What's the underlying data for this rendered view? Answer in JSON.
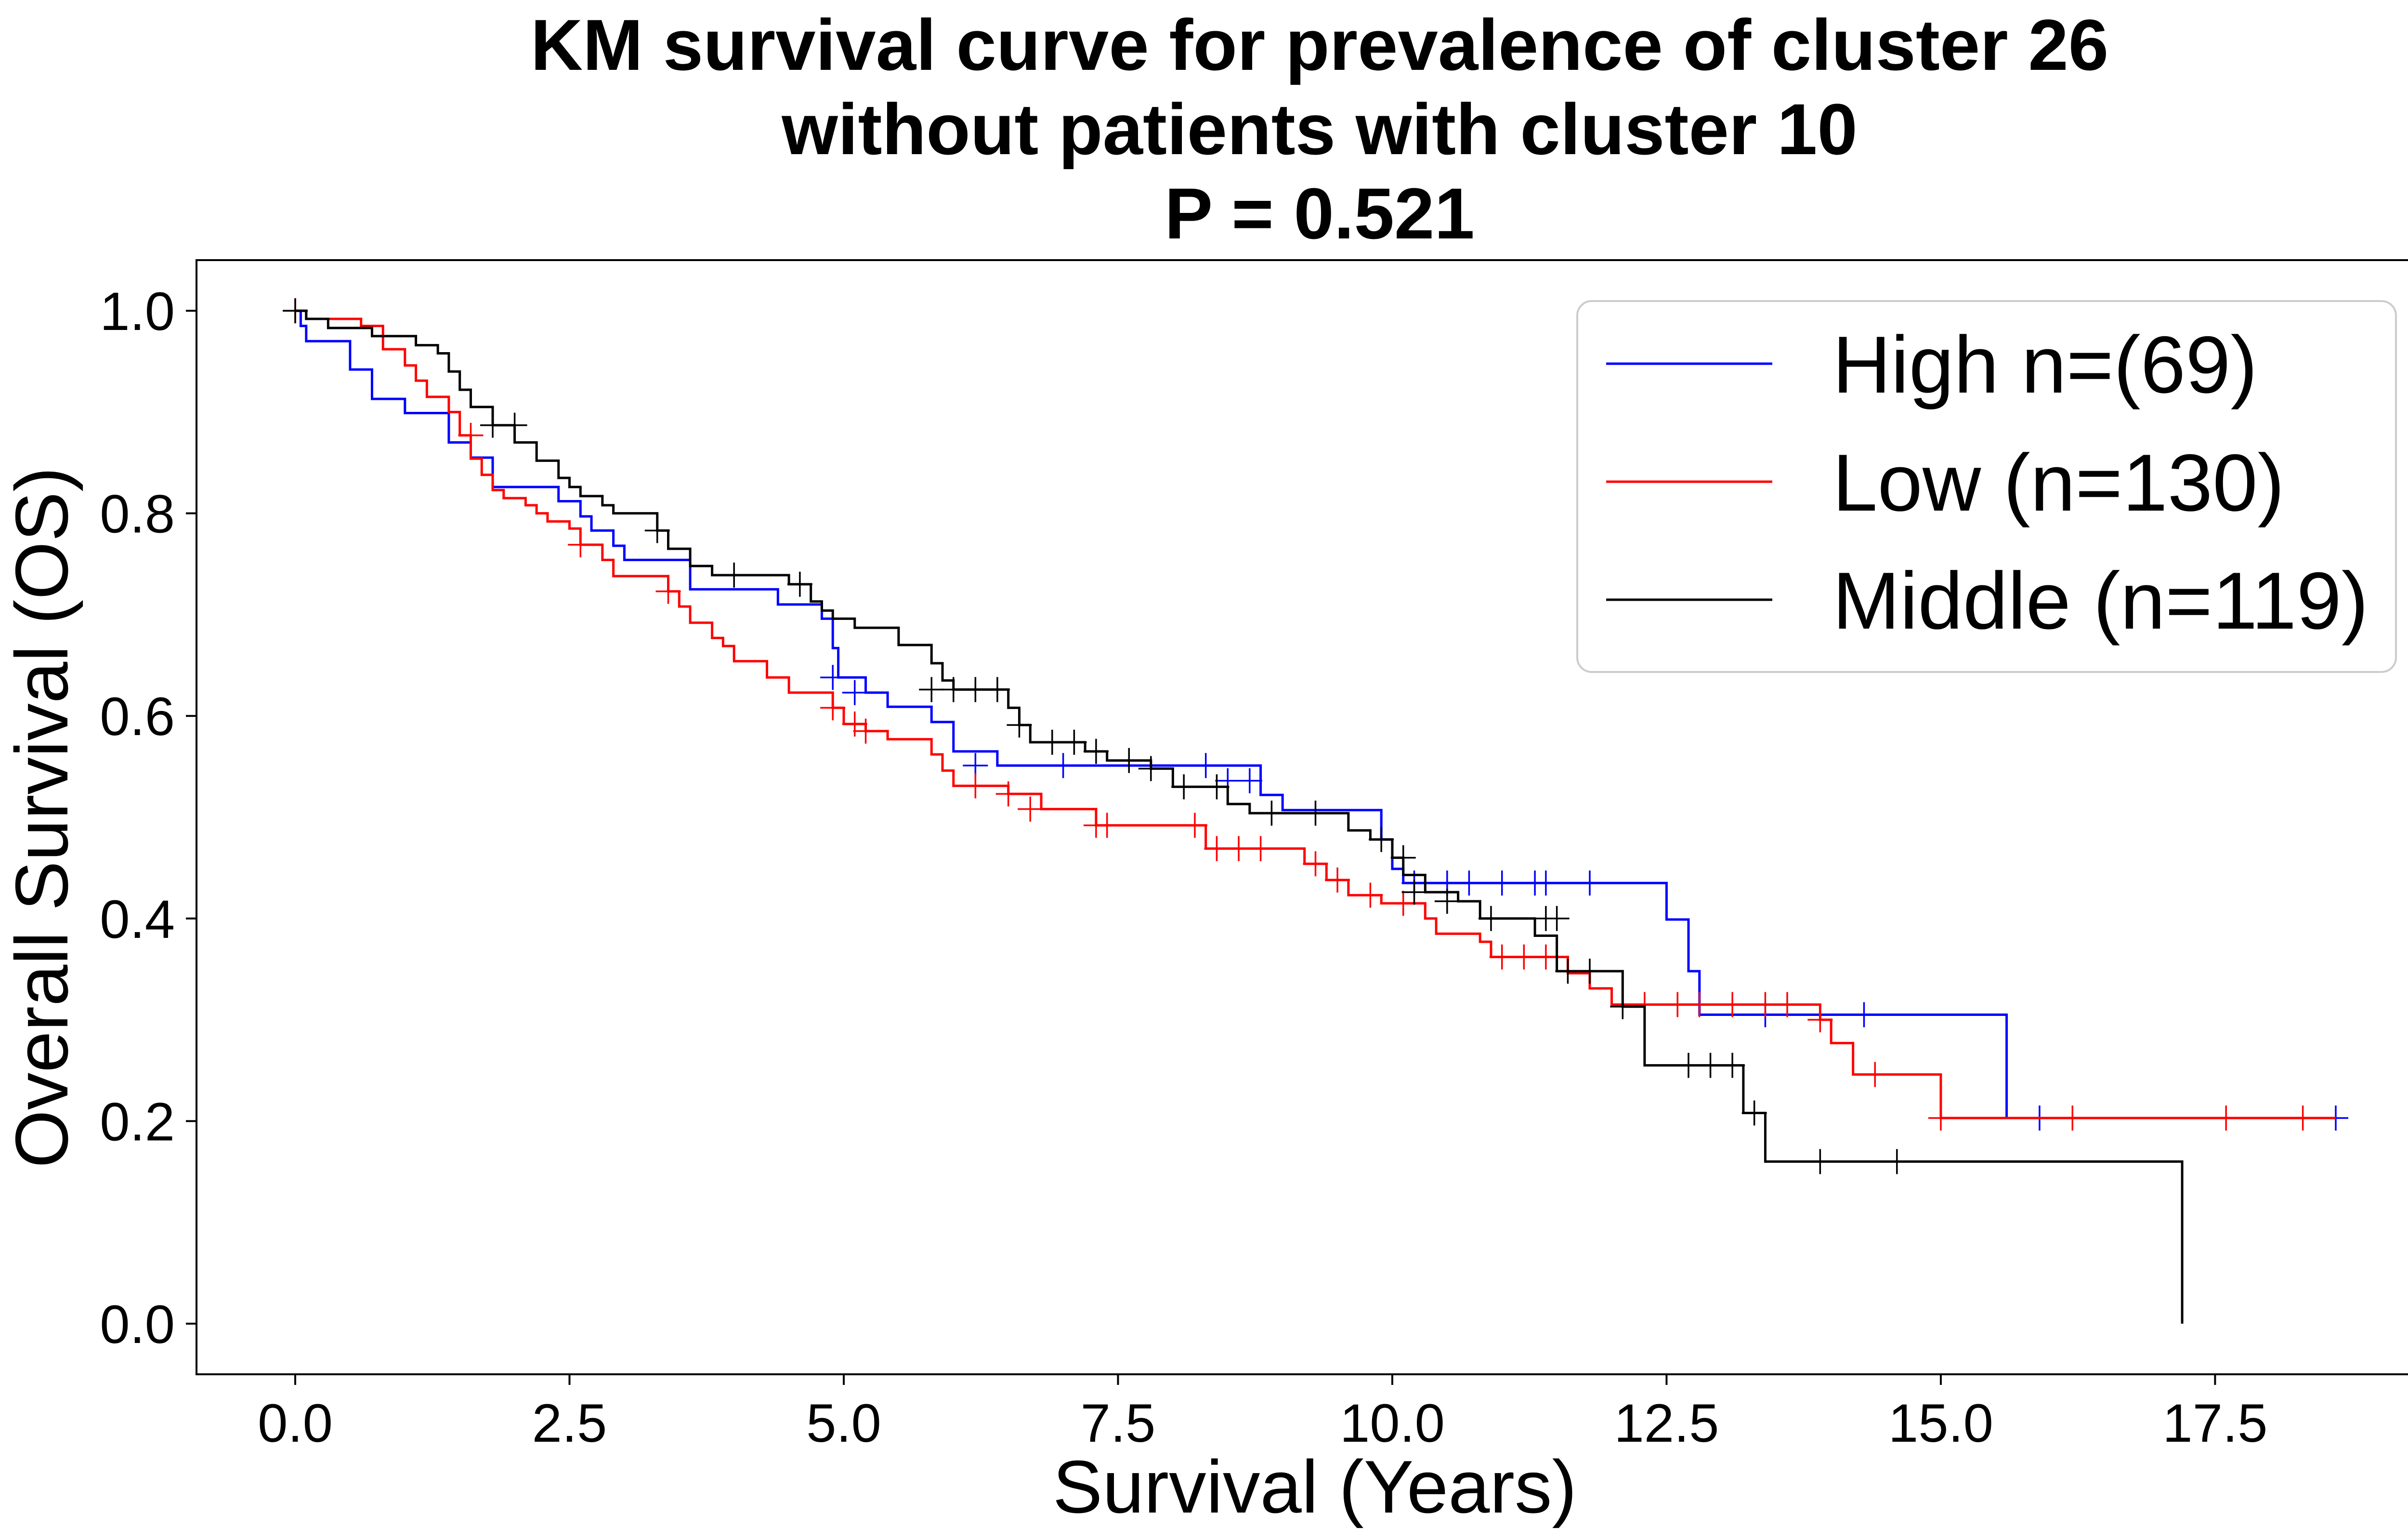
{
  "chart_data": {
    "type": "line",
    "title_lines": [
      "KM survival curve for prevalence of cluster 26",
      "without patients with cluster 10",
      "P = 0.521"
    ],
    "xlabel": "Survival (Years)",
    "ylabel": "Overall Survival (OS)",
    "xlim": [
      -0.9,
      19.5
    ],
    "ylim": [
      -0.05,
      1.05
    ],
    "xticks": [
      "0.0",
      "2.5",
      "5.0",
      "7.5",
      "10.0",
      "12.5",
      "15.0",
      "17.5"
    ],
    "yticks": [
      "0.0",
      "0.2",
      "0.4",
      "0.6",
      "0.8",
      "1.0"
    ],
    "grid": false,
    "legend_position": "top-right",
    "series": [
      {
        "name": "High n=(69)",
        "color": "#0000ff",
        "steps": [
          [
            0,
            1.0
          ],
          [
            0.05,
            0.985
          ],
          [
            0.1,
            0.97
          ],
          [
            0.5,
            0.942
          ],
          [
            0.7,
            0.913
          ],
          [
            1.0,
            0.899
          ],
          [
            1.4,
            0.87
          ],
          [
            1.6,
            0.855
          ],
          [
            1.8,
            0.826
          ],
          [
            2.4,
            0.812
          ],
          [
            2.6,
            0.797
          ],
          [
            2.7,
            0.783
          ],
          [
            2.9,
            0.768
          ],
          [
            3.0,
            0.754
          ],
          [
            3.6,
            0.725
          ],
          [
            4.4,
            0.71
          ],
          [
            4.8,
            0.696
          ],
          [
            4.9,
            0.667
          ],
          [
            4.95,
            0.638
          ],
          [
            5.2,
            0.623
          ],
          [
            5.4,
            0.609
          ],
          [
            5.8,
            0.594
          ],
          [
            6.0,
            0.565
          ],
          [
            6.4,
            0.551
          ],
          [
            8.8,
            0.522
          ],
          [
            9.0,
            0.507
          ],
          [
            9.9,
            0.478
          ],
          [
            10.0,
            0.449
          ],
          [
            10.1,
            0.435
          ],
          [
            12.5,
            0.399
          ],
          [
            12.7,
            0.348
          ],
          [
            12.8,
            0.305
          ],
          [
            15.6,
            0.203
          ],
          [
            18.6,
            0.203
          ]
        ],
        "censored": [
          [
            4.9,
            0.638
          ],
          [
            5.1,
            0.623
          ],
          [
            6.2,
            0.551
          ],
          [
            7.0,
            0.551
          ],
          [
            8.3,
            0.551
          ],
          [
            8.5,
            0.536
          ],
          [
            8.7,
            0.536
          ],
          [
            10.2,
            0.435
          ],
          [
            10.5,
            0.435
          ],
          [
            10.7,
            0.435
          ],
          [
            11.0,
            0.435
          ],
          [
            11.3,
            0.435
          ],
          [
            11.4,
            0.435
          ],
          [
            11.8,
            0.435
          ],
          [
            13.4,
            0.305
          ],
          [
            14.3,
            0.305
          ],
          [
            15.9,
            0.203
          ],
          [
            18.6,
            0.203
          ]
        ]
      },
      {
        "name": "Low (n=130)",
        "color": "#ff0000",
        "steps": [
          [
            0,
            1.0
          ],
          [
            0.1,
            0.992
          ],
          [
            0.6,
            0.985
          ],
          [
            0.8,
            0.962
          ],
          [
            1.0,
            0.946
          ],
          [
            1.1,
            0.931
          ],
          [
            1.2,
            0.915
          ],
          [
            1.4,
            0.9
          ],
          [
            1.5,
            0.877
          ],
          [
            1.6,
            0.854
          ],
          [
            1.7,
            0.838
          ],
          [
            1.8,
            0.823
          ],
          [
            1.9,
            0.815
          ],
          [
            2.1,
            0.808
          ],
          [
            2.2,
            0.8
          ],
          [
            2.3,
            0.792
          ],
          [
            2.5,
            0.785
          ],
          [
            2.6,
            0.769
          ],
          [
            2.8,
            0.754
          ],
          [
            2.9,
            0.738
          ],
          [
            3.4,
            0.723
          ],
          [
            3.5,
            0.708
          ],
          [
            3.6,
            0.692
          ],
          [
            3.8,
            0.677
          ],
          [
            3.9,
            0.669
          ],
          [
            4.0,
            0.654
          ],
          [
            4.3,
            0.638
          ],
          [
            4.5,
            0.623
          ],
          [
            4.9,
            0.608
          ],
          [
            5.0,
            0.592
          ],
          [
            5.2,
            0.585
          ],
          [
            5.4,
            0.577
          ],
          [
            5.8,
            0.562
          ],
          [
            5.9,
            0.546
          ],
          [
            6.0,
            0.531
          ],
          [
            6.5,
            0.523
          ],
          [
            6.8,
            0.508
          ],
          [
            7.3,
            0.492
          ],
          [
            8.2,
            0.492
          ],
          [
            8.3,
            0.469
          ],
          [
            9.2,
            0.454
          ],
          [
            9.4,
            0.438
          ],
          [
            9.6,
            0.423
          ],
          [
            9.9,
            0.415
          ],
          [
            10.3,
            0.4
          ],
          [
            10.4,
            0.385
          ],
          [
            10.8,
            0.377
          ],
          [
            10.9,
            0.362
          ],
          [
            11.6,
            0.346
          ],
          [
            11.8,
            0.331
          ],
          [
            12.0,
            0.315
          ],
          [
            13.9,
            0.3
          ],
          [
            14.0,
            0.277
          ],
          [
            14.2,
            0.246
          ],
          [
            15.0,
            0.203
          ],
          [
            18.6,
            0.203
          ]
        ],
        "censored": [
          [
            0.0,
            1.0
          ],
          [
            1.6,
            0.877
          ],
          [
            2.6,
            0.769
          ],
          [
            3.4,
            0.723
          ],
          [
            4.9,
            0.608
          ],
          [
            5.1,
            0.592
          ],
          [
            5.2,
            0.585
          ],
          [
            6.2,
            0.531
          ],
          [
            6.5,
            0.523
          ],
          [
            6.7,
            0.508
          ],
          [
            7.3,
            0.492
          ],
          [
            7.4,
            0.492
          ],
          [
            8.2,
            0.492
          ],
          [
            8.4,
            0.469
          ],
          [
            8.6,
            0.469
          ],
          [
            8.8,
            0.469
          ],
          [
            9.3,
            0.454
          ],
          [
            9.5,
            0.438
          ],
          [
            9.8,
            0.423
          ],
          [
            10.1,
            0.415
          ],
          [
            11.0,
            0.362
          ],
          [
            11.2,
            0.362
          ],
          [
            11.4,
            0.362
          ],
          [
            12.3,
            0.315
          ],
          [
            12.6,
            0.315
          ],
          [
            12.8,
            0.315
          ],
          [
            13.1,
            0.315
          ],
          [
            13.4,
            0.315
          ],
          [
            13.6,
            0.315
          ],
          [
            13.9,
            0.3
          ],
          [
            14.4,
            0.246
          ],
          [
            15.0,
            0.203
          ],
          [
            16.2,
            0.203
          ],
          [
            17.6,
            0.203
          ],
          [
            18.3,
            0.203
          ]
        ]
      },
      {
        "name": "Middle (n=119)",
        "color": "#000000",
        "steps": [
          [
            0,
            1.0
          ],
          [
            0.1,
            0.992
          ],
          [
            0.3,
            0.983
          ],
          [
            0.7,
            0.975
          ],
          [
            1.1,
            0.966
          ],
          [
            1.3,
            0.958
          ],
          [
            1.4,
            0.94
          ],
          [
            1.5,
            0.922
          ],
          [
            1.6,
            0.905
          ],
          [
            1.8,
            0.887
          ],
          [
            2.0,
            0.87
          ],
          [
            2.2,
            0.852
          ],
          [
            2.4,
            0.835
          ],
          [
            2.5,
            0.826
          ],
          [
            2.6,
            0.817
          ],
          [
            2.8,
            0.808
          ],
          [
            2.9,
            0.8
          ],
          [
            3.3,
            0.783
          ],
          [
            3.4,
            0.765
          ],
          [
            3.6,
            0.748
          ],
          [
            3.8,
            0.739
          ],
          [
            4.5,
            0.73
          ],
          [
            4.7,
            0.713
          ],
          [
            4.8,
            0.704
          ],
          [
            4.9,
            0.696
          ],
          [
            5.1,
            0.687
          ],
          [
            5.5,
            0.67
          ],
          [
            5.8,
            0.652
          ],
          [
            5.9,
            0.635
          ],
          [
            6.0,
            0.626
          ],
          [
            6.5,
            0.608
          ],
          [
            6.6,
            0.591
          ],
          [
            6.7,
            0.574
          ],
          [
            7.0,
            0.574
          ],
          [
            7.2,
            0.565
          ],
          [
            7.4,
            0.556
          ],
          [
            7.8,
            0.548
          ],
          [
            8.0,
            0.53
          ],
          [
            8.5,
            0.513
          ],
          [
            8.7,
            0.504
          ],
          [
            9.6,
            0.487
          ],
          [
            9.8,
            0.478
          ],
          [
            10.0,
            0.46
          ],
          [
            10.1,
            0.443
          ],
          [
            10.3,
            0.426
          ],
          [
            10.6,
            0.417
          ],
          [
            10.8,
            0.4
          ],
          [
            11.2,
            0.4
          ],
          [
            11.3,
            0.383
          ],
          [
            11.5,
            0.348
          ],
          [
            12.1,
            0.313
          ],
          [
            12.3,
            0.255
          ],
          [
            13.2,
            0.208
          ],
          [
            13.4,
            0.16
          ],
          [
            17.2,
            0.16
          ],
          [
            17.2,
            0.0
          ]
        ],
        "censored": [
          [
            0.0,
            1.0
          ],
          [
            1.8,
            0.887
          ],
          [
            2.0,
            0.887
          ],
          [
            3.3,
            0.783
          ],
          [
            4.0,
            0.739
          ],
          [
            4.6,
            0.73
          ],
          [
            5.8,
            0.626
          ],
          [
            6.0,
            0.626
          ],
          [
            6.2,
            0.626
          ],
          [
            6.4,
            0.626
          ],
          [
            6.6,
            0.591
          ],
          [
            6.9,
            0.574
          ],
          [
            7.1,
            0.574
          ],
          [
            7.3,
            0.565
          ],
          [
            7.6,
            0.556
          ],
          [
            7.8,
            0.548
          ],
          [
            8.1,
            0.53
          ],
          [
            8.4,
            0.53
          ],
          [
            8.9,
            0.504
          ],
          [
            9.3,
            0.504
          ],
          [
            9.9,
            0.478
          ],
          [
            10.1,
            0.46
          ],
          [
            10.2,
            0.426
          ],
          [
            10.5,
            0.417
          ],
          [
            10.9,
            0.4
          ],
          [
            11.4,
            0.4
          ],
          [
            11.5,
            0.4
          ],
          [
            11.6,
            0.348
          ],
          [
            11.8,
            0.348
          ],
          [
            12.1,
            0.313
          ],
          [
            12.7,
            0.255
          ],
          [
            12.9,
            0.255
          ],
          [
            13.1,
            0.255
          ],
          [
            13.3,
            0.208
          ],
          [
            13.9,
            0.16
          ],
          [
            14.6,
            0.16
          ]
        ]
      }
    ]
  }
}
